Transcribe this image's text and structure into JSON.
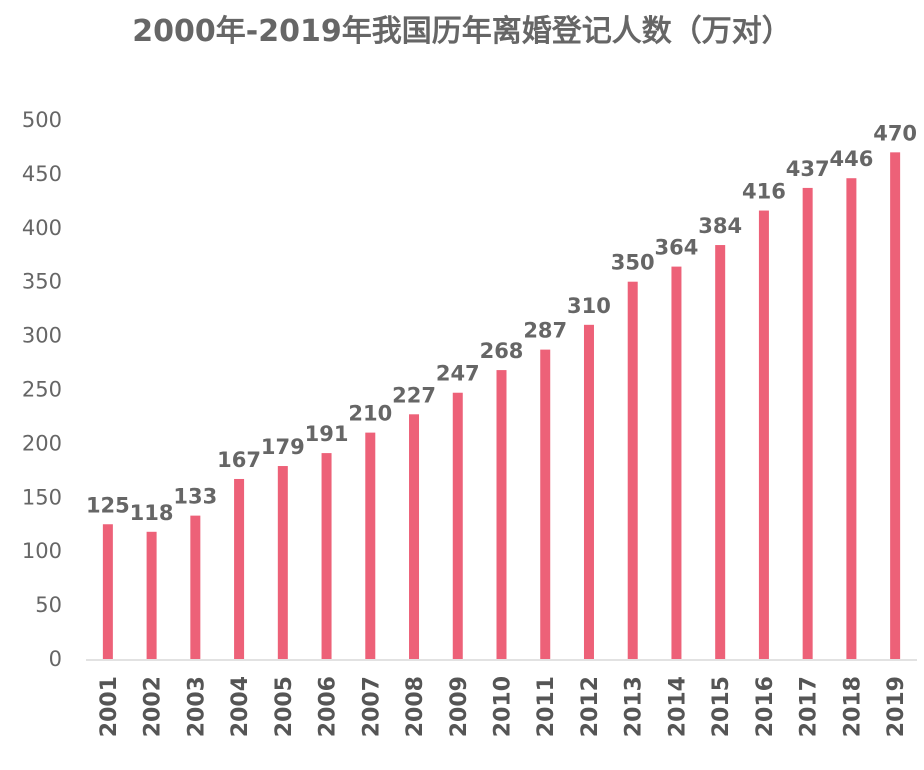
{
  "chart_data": {
    "type": "bar",
    "title": "2000年-2019年我国历年离婚登记人数（万对）",
    "xlabel": "",
    "ylabel": "",
    "ylim": [
      0,
      500
    ],
    "yticks": [
      0,
      50,
      100,
      150,
      200,
      250,
      300,
      350,
      400,
      450,
      500
    ],
    "grid": false,
    "legend": "none",
    "bar_color": "#ED6178",
    "categories": [
      "2001",
      "2002",
      "2003",
      "2004",
      "2005",
      "2006",
      "2007",
      "2008",
      "2009",
      "2010",
      "2011",
      "2012",
      "2013",
      "2014",
      "2015",
      "2016",
      "2017",
      "2018",
      "2019"
    ],
    "values": [
      125,
      118,
      133,
      167,
      179,
      191,
      210,
      227,
      247,
      268,
      287,
      310,
      350,
      364,
      384,
      416,
      437,
      446,
      470
    ]
  }
}
